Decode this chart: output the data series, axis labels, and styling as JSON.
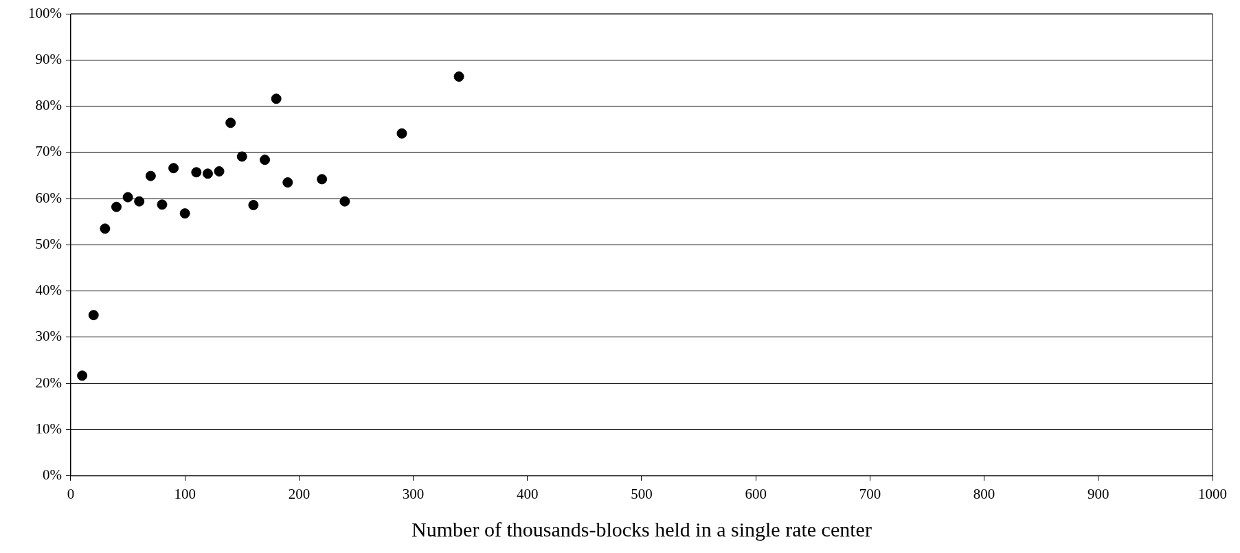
{
  "chart_data": {
    "type": "scatter",
    "xlabel": "Number of thousands-blocks held in a single rate center",
    "x": [
      10,
      20,
      30,
      40,
      50,
      60,
      70,
      80,
      90,
      100,
      110,
      120,
      130,
      140,
      150,
      160,
      170,
      180,
      190,
      220,
      240,
      290,
      340
    ],
    "values": [
      21.7,
      34.8,
      53.5,
      58.2,
      60.3,
      59.4,
      64.9,
      58.7,
      66.6,
      56.8,
      65.7,
      65.4,
      65.9,
      76.4,
      69.1,
      58.6,
      68.4,
      81.6,
      63.5,
      64.2,
      59.4,
      74.1,
      86.4
    ],
    "color": "#000000",
    "marker": "circle",
    "grid": "y",
    "legend": false,
    "xlim": [
      0,
      1000
    ],
    "xticks": [
      0,
      100,
      200,
      300,
      400,
      500,
      600,
      700,
      800,
      900,
      1000
    ],
    "ylim": [
      0,
      100
    ],
    "yticks": [
      {
        "value": 0,
        "label": "0%"
      },
      {
        "value": 10,
        "label": "10%"
      },
      {
        "value": 20,
        "label": "20%"
      },
      {
        "value": 30,
        "label": "30%"
      },
      {
        "value": 40,
        "label": "40%"
      },
      {
        "value": 50,
        "label": "50%"
      },
      {
        "value": 60,
        "label": "60%"
      },
      {
        "value": 70,
        "label": "70%"
      },
      {
        "value": 80,
        "label": "80%"
      },
      {
        "value": 90,
        "label": "90%"
      },
      {
        "value": 100,
        "label": "100%"
      }
    ]
  }
}
